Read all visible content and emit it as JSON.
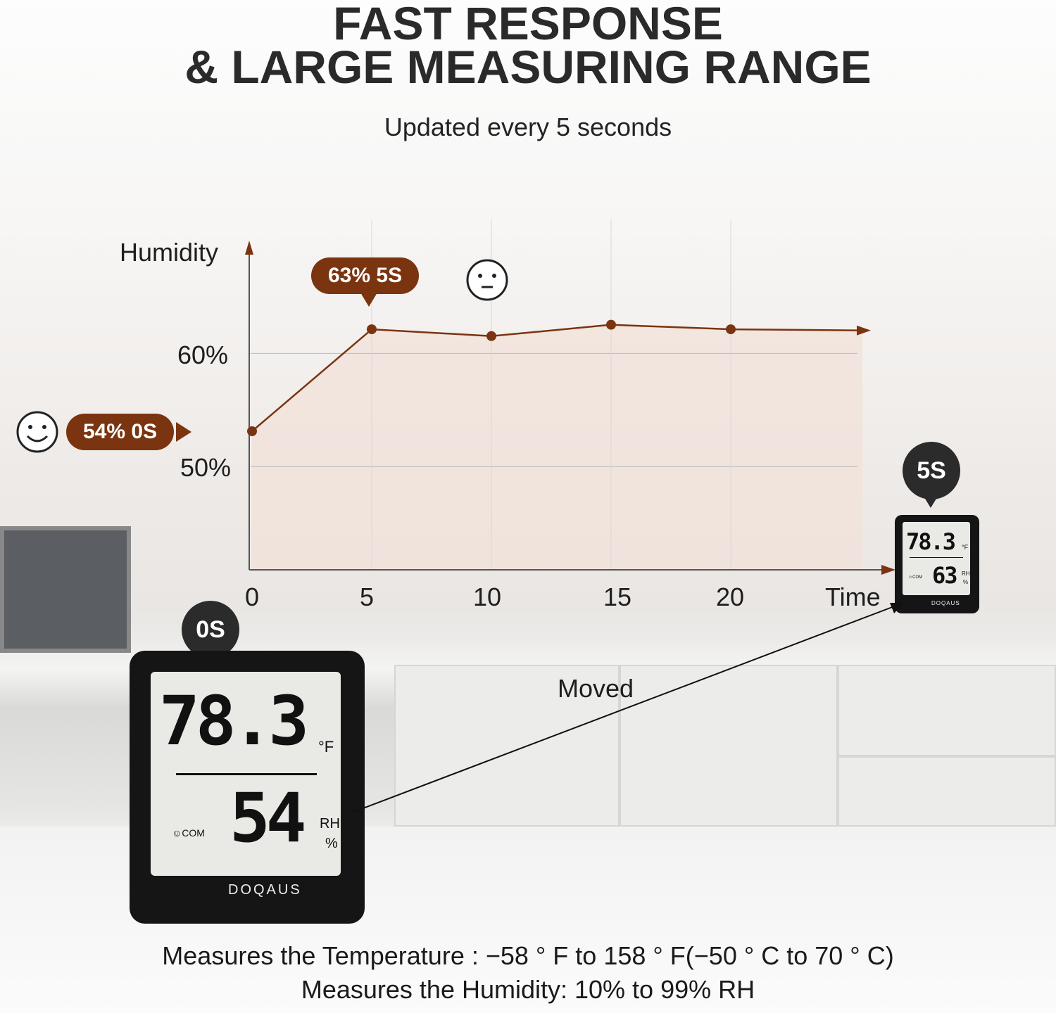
{
  "header": {
    "title_line1": "FAST RESPONSE",
    "title_line2": "& LARGE MEASURING RANGE",
    "subtitle": "Updated every 5 seconds"
  },
  "chart_data": {
    "type": "line",
    "ylabel": "Humidity",
    "xlabel": "Time",
    "x": [
      0,
      5,
      10,
      15,
      20
    ],
    "values": [
      54,
      63,
      62.4,
      63.4,
      63
    ],
    "x_ticks": [
      "0",
      "5",
      "10",
      "15",
      "20"
    ],
    "y_ticks": [
      "50%",
      "60%"
    ],
    "grid": true,
    "annotations": [
      {
        "text": "54%  0S",
        "icon": "smiling-face-icon"
      },
      {
        "text": "63%  5S",
        "icon": "neutral-face-icon"
      }
    ],
    "colors": {
      "line": "#7a3410",
      "fill": "#f1e2da"
    }
  },
  "devices": {
    "before": {
      "badge": "0S",
      "temp": "78.3",
      "temp_unit": "°F",
      "humidity": "54",
      "hum_unit_1": "RH",
      "hum_unit_2": "%",
      "comfort": "☺COM",
      "brand": "DOQAUS"
    },
    "after": {
      "badge": "5S",
      "temp": "78.3",
      "temp_unit": "°F",
      "humidity": "63",
      "hum_unit_1": "RH",
      "hum_unit_2": "%",
      "comfort": "☺COM",
      "brand": "DOQAUS"
    },
    "moved_label": "Moved"
  },
  "footer": {
    "line1": "Measures the Temperature : −58 °  F to 158 °  F(−50 °  C to 70 °  C)",
    "line2": "Measures the Humidity: 10% to 99% RH"
  }
}
